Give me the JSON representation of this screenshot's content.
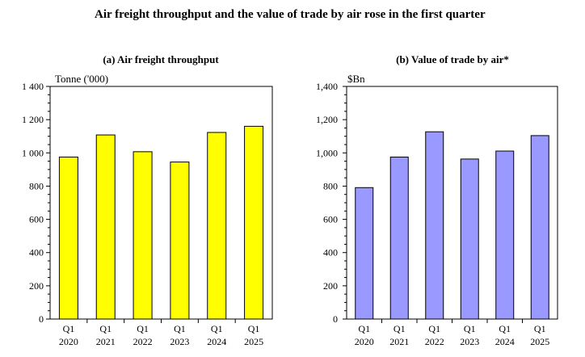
{
  "title": "Air freight throughput and the value of trade by air rose in the first quarter",
  "chart_data": [
    {
      "type": "bar",
      "title": "(a) Air freight throughput",
      "ylabel": "Tonne ('000)",
      "categories": [
        [
          "Q1",
          "2020"
        ],
        [
          "Q1",
          "2021"
        ],
        [
          "Q1",
          "2022"
        ],
        [
          "Q1",
          "2023"
        ],
        [
          "Q1",
          "2024"
        ],
        [
          "Q1",
          "2025"
        ]
      ],
      "values": [
        975,
        1108,
        1007,
        945,
        1123,
        1160
      ],
      "ylim": [
        0,
        1400
      ],
      "yticks": [
        0,
        200,
        400,
        600,
        800,
        1000,
        1200,
        1400
      ],
      "ytick_labels": [
        "0",
        "200",
        "400",
        "600",
        "800",
        "1 000",
        "1 200",
        "1 400"
      ],
      "bar_color": "#ffff00",
      "grid": false
    },
    {
      "type": "bar",
      "title": "(b) Value of trade by air*",
      "ylabel": "$Bn",
      "categories": [
        [
          "Q1",
          "2020"
        ],
        [
          "Q1",
          "2021"
        ],
        [
          "Q1",
          "2022"
        ],
        [
          "Q1",
          "2023"
        ],
        [
          "Q1",
          "2024"
        ],
        [
          "Q1",
          "2025"
        ]
      ],
      "values": [
        791,
        975,
        1127,
        963,
        1011,
        1104
      ],
      "ylim": [
        0,
        1400
      ],
      "yticks": [
        0,
        200,
        400,
        600,
        800,
        1000,
        1200,
        1400
      ],
      "ytick_labels": [
        "0",
        "200",
        "400",
        "600",
        "800",
        "1,000",
        "1,200",
        "1,400"
      ],
      "bar_color": "#9999ff",
      "grid": false
    }
  ]
}
